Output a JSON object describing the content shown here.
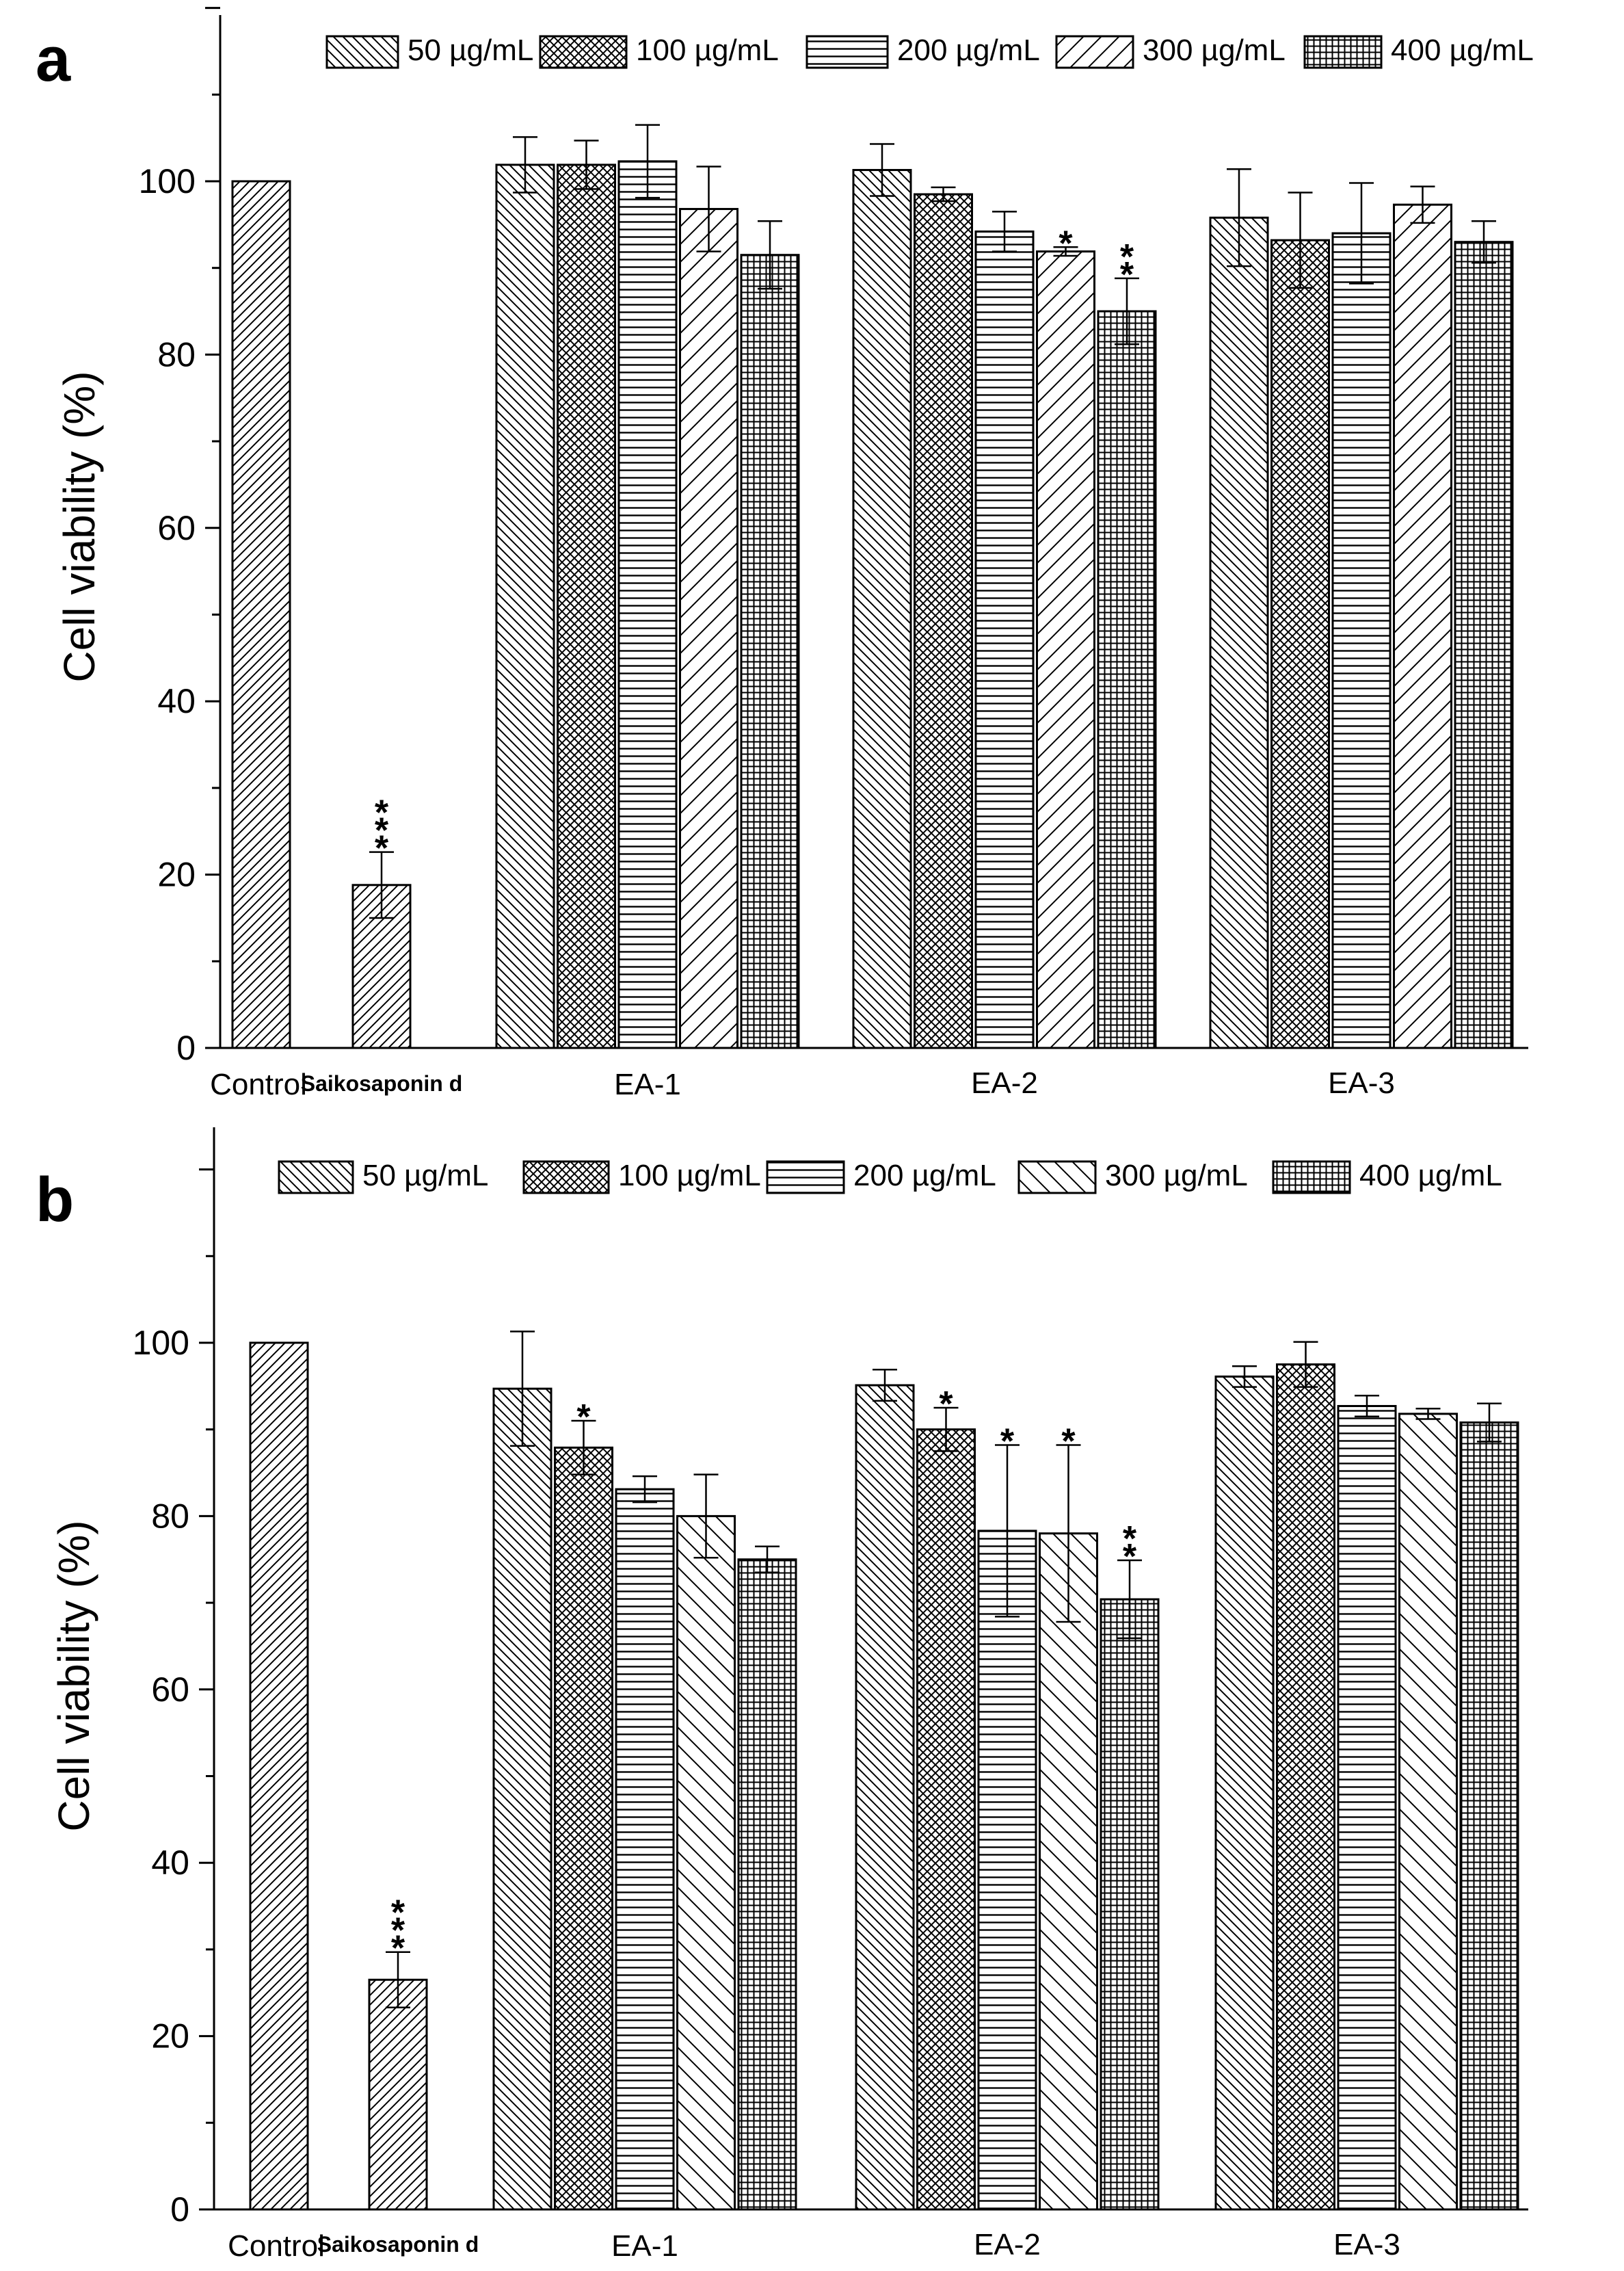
{
  "chart_data": [
    {
      "panel": "a",
      "type": "bar",
      "ylabel": "Cell viability (%)",
      "xlabel": "",
      "ylim": [
        0,
        120
      ],
      "yticks": [
        0,
        20,
        40,
        60,
        80,
        100
      ],
      "legend": [
        {
          "label": "50 µg/mL",
          "pattern": "diag-down"
        },
        {
          "label": "100 µg/mL",
          "pattern": "cross"
        },
        {
          "label": "200 µg/mL",
          "pattern": "horiz"
        },
        {
          "label": "300 µg/mL",
          "pattern": "diag-up-wide"
        },
        {
          "label": "400 µg/mL",
          "pattern": "grid"
        }
      ],
      "controls": [
        {
          "label": "Control",
          "value": 100,
          "error": 0,
          "sig": ""
        },
        {
          "label": "Saikosaponin d",
          "value": 18.8,
          "error": 3.8,
          "sig": "***"
        }
      ],
      "groups": [
        {
          "label": "EA-1",
          "values": [
            101.9,
            101.9,
            102.3,
            96.8,
            91.5
          ],
          "errors": [
            3.2,
            2.8,
            4.2,
            4.9,
            3.9
          ],
          "sig": [
            "",
            "",
            "",
            "",
            ""
          ]
        },
        {
          "label": "EA-2",
          "values": [
            101.3,
            98.5,
            94.2,
            91.9,
            85.0
          ],
          "errors": [
            3.0,
            0.8,
            2.3,
            0.5,
            3.8
          ],
          "sig": [
            "",
            "",
            "",
            "*",
            "**"
          ]
        },
        {
          "label": "EA-3",
          "values": [
            95.8,
            93.2,
            94.0,
            97.3,
            93.0
          ],
          "errors": [
            5.6,
            5.5,
            5.8,
            2.1,
            2.4
          ],
          "sig": [
            "",
            "",
            "",
            "",
            ""
          ]
        }
      ]
    },
    {
      "panel": "b",
      "type": "bar",
      "ylabel": "Cell viability (%)",
      "xlabel": "",
      "ylim": [
        0,
        120
      ],
      "yticks": [
        0,
        20,
        40,
        60,
        80,
        100
      ],
      "legend": [
        {
          "label": "50 µg/mL",
          "pattern": "diag-down"
        },
        {
          "label": "100 µg/mL",
          "pattern": "cross"
        },
        {
          "label": "200 µg/mL",
          "pattern": "horiz"
        },
        {
          "label": "300 µg/mL",
          "pattern": "diag-back-wide"
        },
        {
          "label": "400 µg/mL",
          "pattern": "grid"
        }
      ],
      "controls": [
        {
          "label": "Control",
          "value": 100,
          "error": 0,
          "sig": ""
        },
        {
          "label": "Saikosaponin d",
          "value": 26.5,
          "error": 3.2,
          "sig": "***"
        }
      ],
      "groups": [
        {
          "label": "EA-1",
          "values": [
            94.7,
            87.9,
            83.1,
            80.0,
            75.0
          ],
          "errors": [
            6.6,
            3.1,
            1.5,
            4.8,
            1.5
          ],
          "sig": [
            "",
            "*",
            "",
            "",
            ""
          ]
        },
        {
          "label": "EA-2",
          "values": [
            95.1,
            90.0,
            78.3,
            78.0,
            70.4
          ],
          "errors": [
            1.8,
            2.5,
            9.9,
            10.2,
            4.5
          ],
          "sig": [
            "",
            "*",
            "*",
            "*",
            "**"
          ]
        },
        {
          "label": "EA-3",
          "values": [
            96.1,
            97.5,
            92.7,
            91.8,
            90.8
          ],
          "errors": [
            1.2,
            2.6,
            1.2,
            0.6,
            2.2
          ],
          "sig": [
            "",
            "",
            "",
            "",
            ""
          ]
        }
      ]
    }
  ]
}
